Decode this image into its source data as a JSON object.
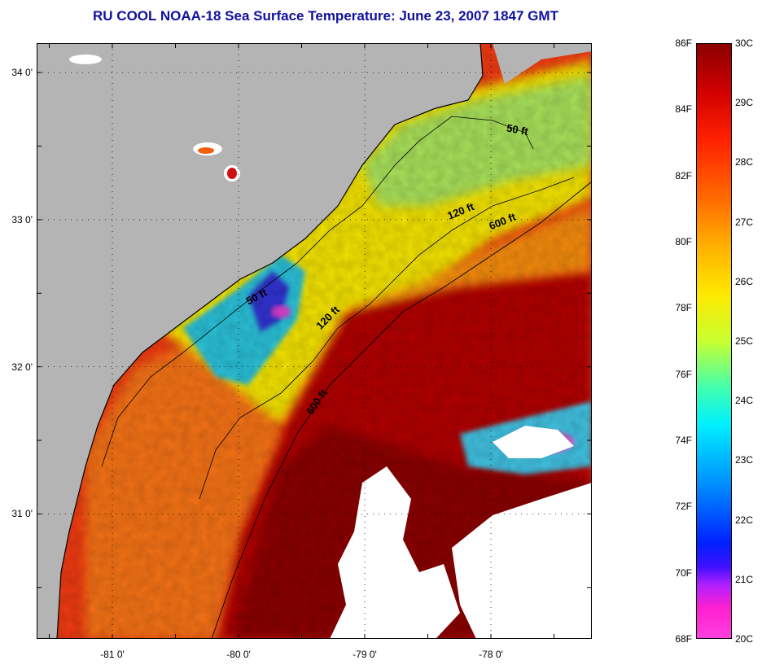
{
  "title": "RU COOL  NOAA-18  Sea Surface Temperature:  June 23, 2007 1847 GMT",
  "colors": {
    "title": "#1010a0",
    "land": "#b4b4b4",
    "cloud": "#ffffff",
    "coast": "#000000"
  },
  "map": {
    "lon_range": [
      -81.6,
      -77.2
    ],
    "lat_range": [
      30.15,
      34.2
    ],
    "lat_ticks": [
      {
        "value": 34,
        "label": "34 0'"
      },
      {
        "value": 33,
        "label": "33 0'"
      },
      {
        "value": 32,
        "label": "32 0'"
      },
      {
        "value": 31,
        "label": "31 0'"
      }
    ],
    "lon_ticks": [
      {
        "value": -81,
        "label": "-81 0'"
      },
      {
        "value": -80,
        "label": "-80 0'"
      },
      {
        "value": -79,
        "label": "-79 0'"
      },
      {
        "value": -78,
        "label": "-78 0'"
      }
    ],
    "isobath_labels": [
      {
        "text": "50 ft",
        "lon": -77.88,
        "lat": 33.6,
        "rotate": 10
      },
      {
        "text": "120 ft",
        "lon": -78.33,
        "lat": 33.0,
        "rotate": -22
      },
      {
        "text": "600 ft",
        "lon": -78.0,
        "lat": 32.93,
        "rotate": -22
      },
      {
        "text": "50 ft",
        "lon": -79.92,
        "lat": 32.42,
        "rotate": -28
      },
      {
        "text": "120 ft",
        "lon": -79.35,
        "lat": 32.25,
        "rotate": -45
      },
      {
        "text": "600 ft",
        "lon": -79.42,
        "lat": 31.67,
        "rotate": -55
      }
    ]
  },
  "colorbar": {
    "f_labels": [
      "86F",
      "84F",
      "82F",
      "80F",
      "78F",
      "76F",
      "74F",
      "72F",
      "70F",
      "68F"
    ],
    "c_labels": [
      "30C",
      "29C",
      "28C",
      "27C",
      "26C",
      "25C",
      "24C",
      "23C",
      "22C",
      "21C",
      "20C"
    ],
    "c_range": [
      20,
      30
    ]
  }
}
